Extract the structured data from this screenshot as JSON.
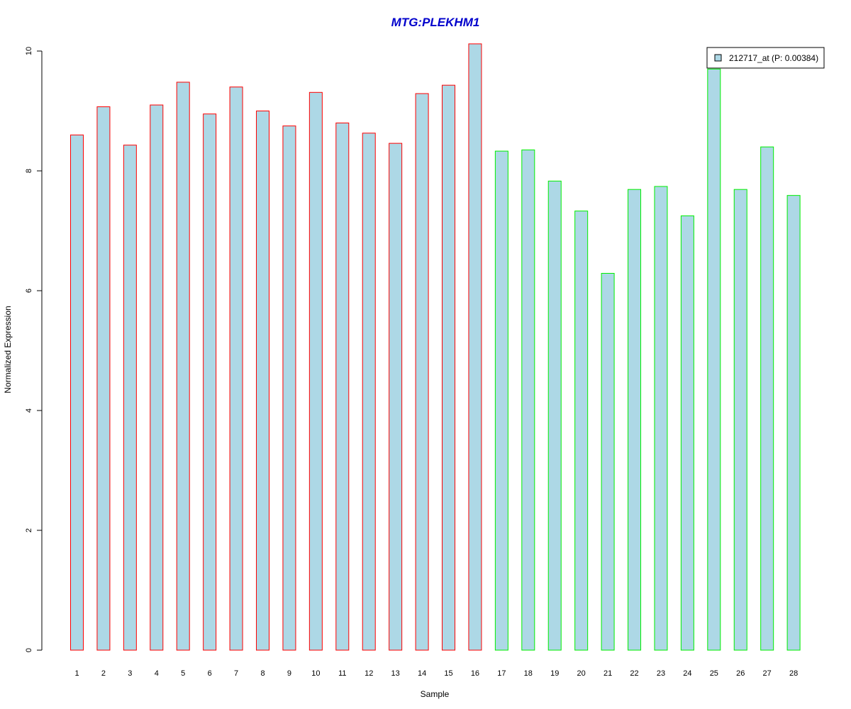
{
  "chart_data": {
    "type": "bar",
    "title": "MTG:PLEKHM1",
    "xlabel": "Sample",
    "ylabel": "Normalized Expression",
    "categories": [
      "1",
      "2",
      "3",
      "4",
      "5",
      "6",
      "7",
      "8",
      "9",
      "10",
      "11",
      "12",
      "13",
      "14",
      "15",
      "16",
      "17",
      "18",
      "19",
      "20",
      "21",
      "22",
      "23",
      "24",
      "25",
      "26",
      "27",
      "28"
    ],
    "values": [
      8.6,
      9.07,
      8.43,
      9.1,
      9.48,
      8.95,
      9.4,
      9.0,
      8.75,
      9.31,
      8.8,
      8.63,
      8.46,
      9.29,
      9.43,
      10.12,
      8.33,
      8.35,
      7.83,
      7.33,
      6.29,
      7.69,
      7.74,
      7.25,
      9.7,
      7.69,
      8.4,
      7.59
    ],
    "ylim": [
      0,
      10
    ],
    "yticks": [
      0,
      2,
      4,
      6,
      8,
      10
    ],
    "grid": false,
    "legend": {
      "label": "212717_at (P: 0.00384)",
      "position": "top-right"
    },
    "series": [
      {
        "name": "212717_at (P: 0.00384)",
        "values": [
          8.6,
          9.07,
          8.43,
          9.1,
          9.48,
          8.95,
          9.4,
          9.0,
          8.75,
          9.31,
          8.8,
          8.63,
          8.46,
          9.29,
          9.43,
          10.12,
          8.33,
          8.35,
          7.83,
          7.33,
          6.29,
          7.69,
          7.74,
          7.25,
          9.7,
          7.69,
          8.4,
          7.59
        ]
      }
    ],
    "colors": {
      "fill": "#add8e6",
      "group1_border": "#ff0000",
      "group2_border": "#00ee00",
      "title": "#0000cc"
    },
    "group1_count": 16
  }
}
